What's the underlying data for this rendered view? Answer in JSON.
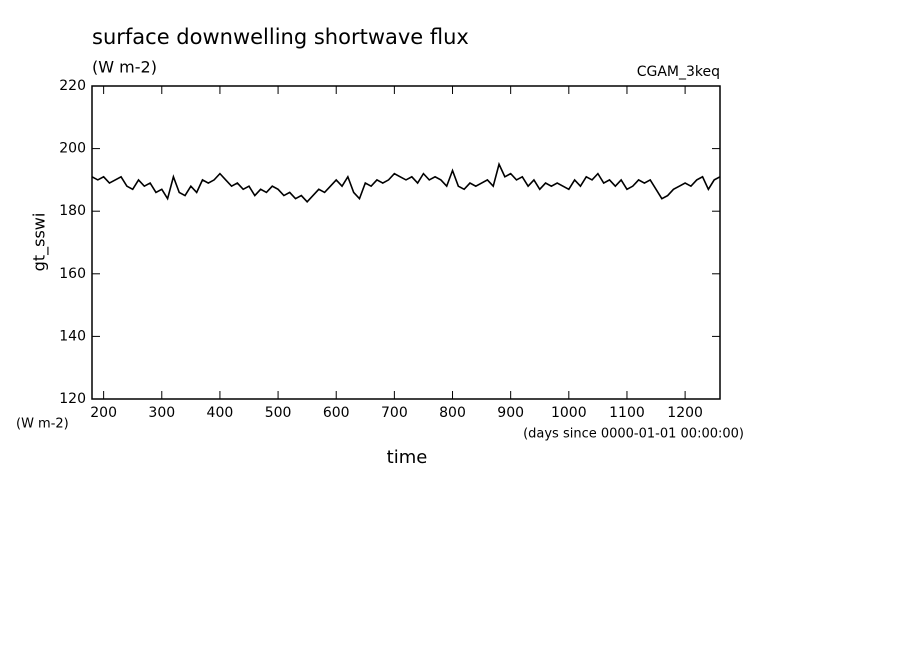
{
  "chart_data": {
    "type": "line",
    "title": "surface downwelling shortwave flux",
    "subtitle": "(W m-2)",
    "annotation": "CGAM_3keq",
    "y_label": "gt_sswi",
    "y_units": "(W m-2)",
    "x_label": "time",
    "x_units": "(days since 0000-01-01 00:00:00)",
    "x": [
      180,
      190,
      200,
      210,
      220,
      230,
      240,
      250,
      260,
      270,
      280,
      290,
      300,
      310,
      320,
      330,
      340,
      350,
      360,
      370,
      380,
      390,
      400,
      410,
      420,
      430,
      440,
      450,
      460,
      470,
      480,
      490,
      500,
      510,
      520,
      530,
      540,
      550,
      560,
      570,
      580,
      590,
      600,
      610,
      620,
      630,
      640,
      650,
      660,
      670,
      680,
      690,
      700,
      710,
      720,
      730,
      740,
      750,
      760,
      770,
      780,
      790,
      800,
      810,
      820,
      830,
      840,
      850,
      860,
      870,
      880,
      890,
      900,
      910,
      920,
      930,
      940,
      950,
      960,
      970,
      980,
      990,
      1000,
      1010,
      1020,
      1030,
      1040,
      1050,
      1060,
      1070,
      1080,
      1090,
      1100,
      1110,
      1120,
      1130,
      1140,
      1150,
      1160,
      1170,
      1180,
      1190,
      1200,
      1210,
      1220,
      1230,
      1240,
      1250,
      1260
    ],
    "series": [
      {
        "name": "gt_sswi",
        "color": "#000000",
        "values": [
          191,
          190,
          191,
          189,
          190,
          191,
          188,
          187,
          190,
          188,
          189,
          186,
          187,
          184,
          191,
          186,
          185,
          188,
          186,
          190,
          189,
          190,
          192,
          190,
          188,
          189,
          187,
          188,
          185,
          187,
          186,
          188,
          187,
          185,
          186,
          184,
          185,
          183,
          185,
          187,
          186,
          188,
          190,
          188,
          191,
          186,
          184,
          189,
          188,
          190,
          189,
          190,
          192,
          191,
          190,
          191,
          189,
          192,
          190,
          191,
          190,
          188,
          193,
          188,
          187,
          189,
          188,
          189,
          190,
          188,
          195,
          191,
          192,
          190,
          191,
          188,
          190,
          187,
          189,
          188,
          189,
          188,
          187,
          190,
          188,
          191,
          190,
          192,
          189,
          190,
          188,
          190,
          187,
          188,
          190,
          189,
          190,
          187,
          184,
          185,
          187,
          188,
          189,
          188,
          190,
          191,
          187,
          190,
          191
        ]
      }
    ],
    "xlim": [
      180,
      1260
    ],
    "ylim": [
      120,
      220
    ],
    "xticks": [
      200,
      300,
      400,
      500,
      600,
      700,
      800,
      900,
      1000,
      1100,
      1200
    ],
    "yticks": [
      120,
      140,
      160,
      180,
      200,
      220
    ]
  }
}
